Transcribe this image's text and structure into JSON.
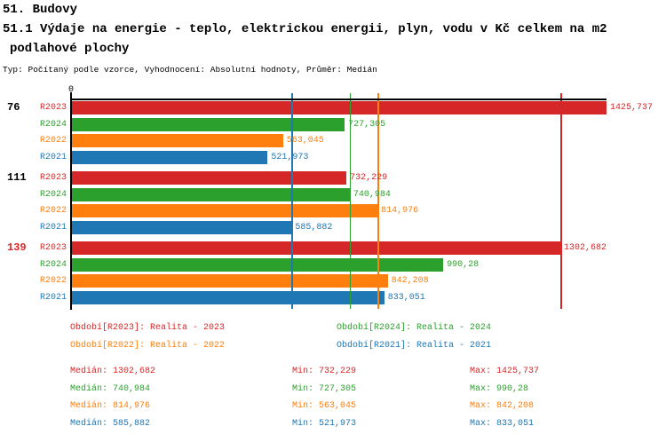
{
  "header": {
    "line1": "51. Budovy",
    "line2": "51.1 Výdaje na energie - teplo, elektrickou energii, plyn, vodu v Kč celkem na m2",
    "line3": "podlahové plochy",
    "meta": "Typ: Počítaný podle vzorce, Vyhodnocení: Absolutní hodnoty, Průměr: Medián"
  },
  "colors": {
    "red": "#d62728",
    "green": "#2ca02c",
    "orange": "#ff7f0e",
    "blue": "#1f77b4",
    "black": "#000000"
  },
  "chart_data": {
    "type": "bar",
    "orientation": "horizontal",
    "title": "51.1 Výdaje na energie - teplo, elektrickou energii, plyn, vodu v Kč celkem na m2 podlahové plochy",
    "legend_position": "bottom",
    "grid": false,
    "axis": {
      "origin_label": "0",
      "value_max": 1425.737,
      "xlim": [
        0,
        1425.737
      ]
    },
    "series_order": [
      "R2023",
      "R2024",
      "R2022",
      "R2021"
    ],
    "groups": [
      {
        "label": "76",
        "label_color": "#000000",
        "bars": [
          {
            "series": "R2023",
            "value": 1425.737,
            "value_label": "1425,737",
            "color_key": "red"
          },
          {
            "series": "R2024",
            "value": 727.305,
            "value_label": "727,305",
            "color_key": "green"
          },
          {
            "series": "R2022",
            "value": 563.045,
            "value_label": "563,045",
            "color_key": "orange"
          },
          {
            "series": "R2021",
            "value": 521.973,
            "value_label": "521,973",
            "color_key": "blue"
          }
        ]
      },
      {
        "label": "111",
        "label_color": "#000000",
        "bars": [
          {
            "series": "R2023",
            "value": 732.229,
            "value_label": "732,229",
            "color_key": "red"
          },
          {
            "series": "R2024",
            "value": 740.984,
            "value_label": "740,984",
            "color_key": "green"
          },
          {
            "series": "R2022",
            "value": 814.976,
            "value_label": "814,976",
            "color_key": "orange"
          },
          {
            "series": "R2021",
            "value": 585.882,
            "value_label": "585,882",
            "color_key": "blue"
          }
        ]
      },
      {
        "label": "139",
        "label_color": "#d62728",
        "bars": [
          {
            "series": "R2023",
            "value": 1302.682,
            "value_label": "1302,682",
            "color_key": "red"
          },
          {
            "series": "R2024",
            "value": 990.28,
            "value_label": "990,28",
            "color_key": "green"
          },
          {
            "series": "R2022",
            "value": 842.208,
            "value_label": "842,208",
            "color_key": "orange"
          },
          {
            "series": "R2021",
            "value": 833.051,
            "value_label": "833,051",
            "color_key": "blue"
          }
        ]
      }
    ],
    "median_lines": [
      {
        "color_key": "red",
        "value": 1302.682
      },
      {
        "color_key": "green",
        "value": 740.984
      },
      {
        "color_key": "orange",
        "value": 814.976
      },
      {
        "color_key": "blue",
        "value": 585.882
      }
    ]
  },
  "legend": {
    "items": [
      {
        "label": "Období[R2023]: Realita - 2023",
        "color_key": "red",
        "row": 0,
        "col": 0
      },
      {
        "label": "Období[R2024]: Realita - 2024",
        "color_key": "green",
        "row": 0,
        "col": 1
      },
      {
        "label": "Období[R2022]: Realita - 2022",
        "color_key": "orange",
        "row": 1,
        "col": 0
      },
      {
        "label": "Období[R2021]: Realita - 2021",
        "color_key": "blue",
        "row": 1,
        "col": 1
      }
    ]
  },
  "stats": {
    "rows": [
      {
        "color_key": "red",
        "median": "Medián: 1302,682",
        "min": "Min: 732,229",
        "max": "Max: 1425,737"
      },
      {
        "color_key": "green",
        "median": "Medián: 740,984",
        "min": "Min: 727,305",
        "max": "Max: 990,28"
      },
      {
        "color_key": "orange",
        "median": "Medián: 814,976",
        "min": "Min: 563,045",
        "max": "Max: 842,208"
      },
      {
        "color_key": "blue",
        "median": "Medián: 585,882",
        "min": "Min: 521,973",
        "max": "Max: 833,051"
      }
    ]
  }
}
